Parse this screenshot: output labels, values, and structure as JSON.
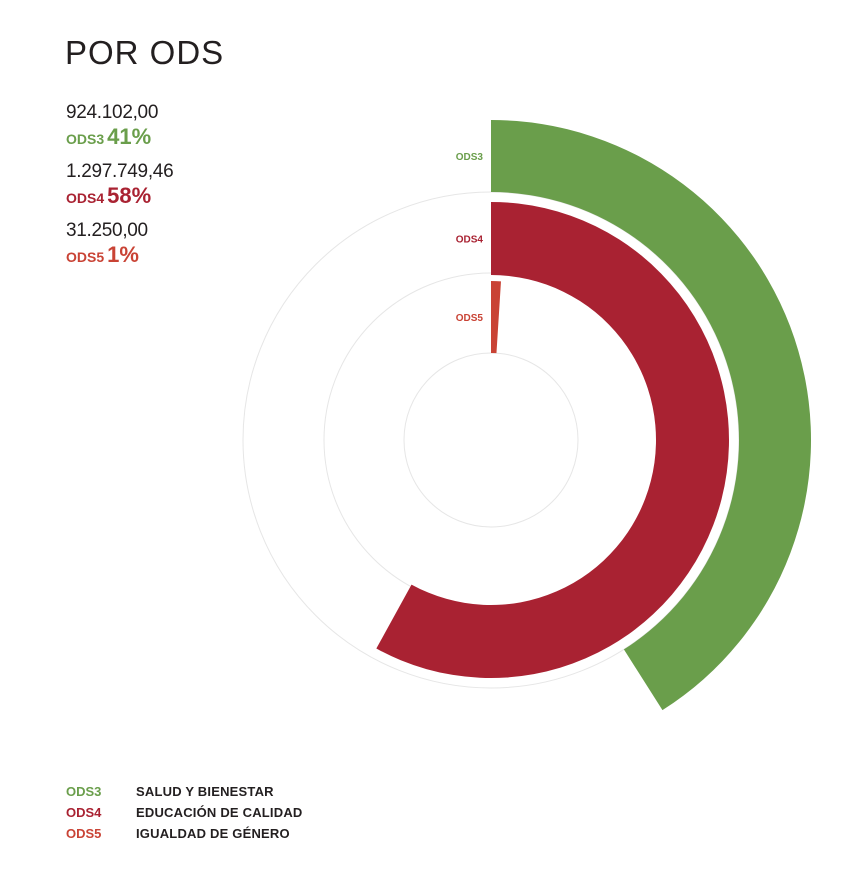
{
  "title": "POR ODS",
  "colors": {
    "ODS3": "#6a9e4b",
    "ODS4": "#a92232",
    "ODS5": "#c94335"
  },
  "stats": [
    {
      "amount": "924.102,00",
      "code": "ODS3",
      "pct": "41%"
    },
    {
      "amount": "1.297.749,46",
      "code": "ODS4",
      "pct": "58%"
    },
    {
      "amount": "31.250,00",
      "code": "ODS5",
      "pct": "1%"
    }
  ],
  "legend": [
    {
      "code": "ODS3",
      "name": "SALUD Y BIENESTAR"
    },
    {
      "code": "ODS4",
      "name": "EDUCACIÓN DE CALIDAD"
    },
    {
      "code": "ODS5",
      "name": "IGUALDAD DE GÉNERO"
    }
  ],
  "chart_data": {
    "type": "radial-bar",
    "title": "POR ODS",
    "unit": "percent of total",
    "series": [
      {
        "name": "ODS3",
        "value": 41,
        "amount": 924102.0,
        "label": "ODS3"
      },
      {
        "name": "ODS4",
        "value": 58,
        "amount": 1297749.46,
        "label": "ODS4"
      },
      {
        "name": "ODS5",
        "value": 1,
        "amount": 31250.0,
        "label": "ODS5"
      }
    ],
    "max": 100,
    "grid": true
  }
}
